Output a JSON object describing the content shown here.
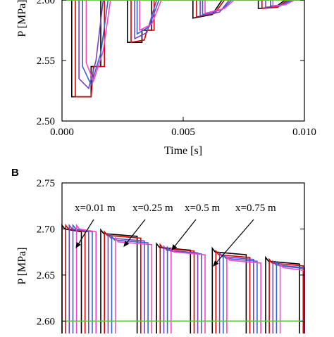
{
  "chart_data": [
    {
      "type": "line",
      "panel": "",
      "xlabel": "Time [s]",
      "ylabel": "P [MPa]",
      "xlim": [
        0.0,
        0.01
      ],
      "ylim": [
        2.5,
        2.6
      ],
      "xticks": [
        0.0,
        0.005,
        0.01
      ],
      "xtick_labels": [
        "0.000",
        "0.005",
        "0.010"
      ],
      "yticks": [
        2.5,
        2.55,
        2.6
      ],
      "ytick_labels": [
        "2.50",
        "2.55",
        "2.60"
      ],
      "reference_line": {
        "y": 2.6,
        "color": "#5fc43a"
      },
      "series": [
        {
          "color": "#000000",
          "points": [
            [
              0.0,
              2.6
            ],
            [
              0.0004,
              2.6
            ],
            [
              0.0004,
              2.52
            ],
            [
              0.0012,
              2.52
            ],
            [
              0.0012,
              2.545
            ],
            [
              0.0016,
              2.545
            ],
            [
              0.0016,
              2.6
            ],
            [
              0.0027,
              2.6
            ],
            [
              0.0027,
              2.565
            ],
            [
              0.0033,
              2.565
            ],
            [
              0.0033,
              2.575
            ],
            [
              0.0037,
              2.575
            ],
            [
              0.0037,
              2.6
            ],
            [
              0.0054,
              2.6
            ],
            [
              0.0054,
              2.585
            ],
            [
              0.0062,
              2.588
            ],
            [
              0.0066,
              2.6
            ],
            [
              0.0081,
              2.6
            ],
            [
              0.0081,
              2.593
            ],
            [
              0.0088,
              2.594
            ],
            [
              0.0092,
              2.6
            ],
            [
              0.01,
              2.6
            ]
          ]
        },
        {
          "color": "#d40000",
          "points": [
            [
              0.0,
              2.6
            ],
            [
              0.00055,
              2.6
            ],
            [
              0.00055,
              2.52
            ],
            [
              0.0012,
              2.52
            ],
            [
              0.0013,
              2.545
            ],
            [
              0.00175,
              2.545
            ],
            [
              0.00175,
              2.6
            ],
            [
              0.00285,
              2.6
            ],
            [
              0.00285,
              2.565
            ],
            [
              0.0034,
              2.567
            ],
            [
              0.0035,
              2.575
            ],
            [
              0.0038,
              2.575
            ],
            [
              0.0038,
              2.6
            ],
            [
              0.00555,
              2.6
            ],
            [
              0.00555,
              2.586
            ],
            [
              0.0063,
              2.589
            ],
            [
              0.0067,
              2.6
            ],
            [
              0.00825,
              2.6
            ],
            [
              0.00825,
              2.593
            ],
            [
              0.0089,
              2.594
            ],
            [
              0.0093,
              2.6
            ],
            [
              0.01,
              2.6
            ]
          ]
        },
        {
          "color": "#7a3fbf",
          "points": [
            [
              0.0,
              2.6
            ],
            [
              0.0007,
              2.6
            ],
            [
              0.0007,
              2.535
            ],
            [
              0.0011,
              2.527
            ],
            [
              0.0014,
              2.55
            ],
            [
              0.0017,
              2.6
            ],
            [
              0.003,
              2.6
            ],
            [
              0.003,
              2.568
            ],
            [
              0.0035,
              2.573
            ],
            [
              0.0039,
              2.6
            ],
            [
              0.0057,
              2.6
            ],
            [
              0.0057,
              2.587
            ],
            [
              0.0065,
              2.59
            ],
            [
              0.0069,
              2.6
            ],
            [
              0.0084,
              2.6
            ],
            [
              0.0084,
              2.594
            ],
            [
              0.009,
              2.595
            ],
            [
              0.0094,
              2.6
            ],
            [
              0.01,
              2.6
            ]
          ]
        },
        {
          "color": "#3366cc",
          "points": [
            [
              0.0,
              2.6
            ],
            [
              0.00085,
              2.6
            ],
            [
              0.00085,
              2.545
            ],
            [
              0.0012,
              2.53
            ],
            [
              0.0016,
              2.556
            ],
            [
              0.0019,
              2.6
            ],
            [
              0.0031,
              2.6
            ],
            [
              0.0031,
              2.572
            ],
            [
              0.0036,
              2.578
            ],
            [
              0.004,
              2.6
            ],
            [
              0.0058,
              2.6
            ],
            [
              0.0058,
              2.588
            ],
            [
              0.0066,
              2.592
            ],
            [
              0.007,
              2.6
            ],
            [
              0.0086,
              2.6
            ],
            [
              0.0086,
              2.595
            ],
            [
              0.0091,
              2.596
            ],
            [
              0.0095,
              2.6
            ],
            [
              0.01,
              2.6
            ]
          ]
        },
        {
          "color": "#ff44cc",
          "points": [
            [
              0.0,
              2.6
            ],
            [
              0.001,
              2.6
            ],
            [
              0.001,
              2.548
            ],
            [
              0.0013,
              2.533
            ],
            [
              0.0017,
              2.558
            ],
            [
              0.002,
              2.6
            ],
            [
              0.0032,
              2.6
            ],
            [
              0.0032,
              2.575
            ],
            [
              0.0037,
              2.58
            ],
            [
              0.0041,
              2.6
            ],
            [
              0.0059,
              2.6
            ],
            [
              0.0059,
              2.589
            ],
            [
              0.0067,
              2.593
            ],
            [
              0.0071,
              2.6
            ],
            [
              0.0087,
              2.6
            ],
            [
              0.0087,
              2.595
            ],
            [
              0.0092,
              2.596
            ],
            [
              0.0096,
              2.6
            ],
            [
              0.01,
              2.6
            ]
          ]
        }
      ]
    },
    {
      "type": "line",
      "panel": "B",
      "xlabel": "",
      "ylabel": "P [MPa]",
      "xlim": [
        0.0,
        0.01
      ],
      "ylim": [
        2.585,
        2.75
      ],
      "yticks": [
        2.6,
        2.65,
        2.7,
        2.75
      ],
      "ytick_labels": [
        "2.60",
        "2.65",
        "2.70",
        "2.75"
      ],
      "reference_line": {
        "y": 2.6,
        "color": "#5fc43a"
      },
      "annotations": [
        "x=0.01 m",
        "x=0.25 m",
        "x=0.5 m",
        "x=0.75 m"
      ],
      "series": [
        {
          "color": "#000000",
          "offset": 0.0,
          "pulses": [
            [
              0.0,
              0.0008,
              2.7
            ],
            [
              0.0016,
              0.0031,
              2.695
            ],
            [
              0.0039,
              0.0053,
              2.68
            ],
            [
              0.0062,
              0.0076,
              2.675
            ],
            [
              0.0084,
              0.0098,
              2.665
            ]
          ]
        },
        {
          "color": "#d40000",
          "offset": 0.00015,
          "pulses": [
            [
              0.0,
              0.0008,
              2.7
            ],
            [
              0.0016,
              0.0031,
              2.693
            ],
            [
              0.0039,
              0.0053,
              2.679
            ],
            [
              0.0062,
              0.0076,
              2.672
            ],
            [
              0.0084,
              0.0098,
              2.663
            ]
          ]
        },
        {
          "color": "#7a3fbf",
          "offset": 0.0003,
          "pulses": [
            [
              0.0,
              0.0008,
              2.7
            ],
            [
              0.0016,
              0.0031,
              2.69
            ],
            [
              0.0039,
              0.0053,
              2.677
            ],
            [
              0.0062,
              0.0076,
              2.67
            ],
            [
              0.0084,
              0.0098,
              2.661
            ]
          ]
        },
        {
          "color": "#3366cc",
          "offset": 0.00045,
          "pulses": [
            [
              0.0,
              0.0008,
              2.7
            ],
            [
              0.0016,
              0.0031,
              2.688
            ],
            [
              0.0039,
              0.0053,
              2.676
            ],
            [
              0.0062,
              0.0076,
              2.668
            ],
            [
              0.0084,
              0.0098,
              2.66
            ]
          ]
        },
        {
          "color": "#ff44cc",
          "offset": 0.0006,
          "pulses": [
            [
              0.0,
              0.0008,
              2.7
            ],
            [
              0.0016,
              0.0031,
              2.686
            ],
            [
              0.0039,
              0.0053,
              2.675
            ],
            [
              0.0062,
              0.0076,
              2.666
            ],
            [
              0.0084,
              0.0098,
              2.658
            ]
          ]
        }
      ]
    }
  ]
}
